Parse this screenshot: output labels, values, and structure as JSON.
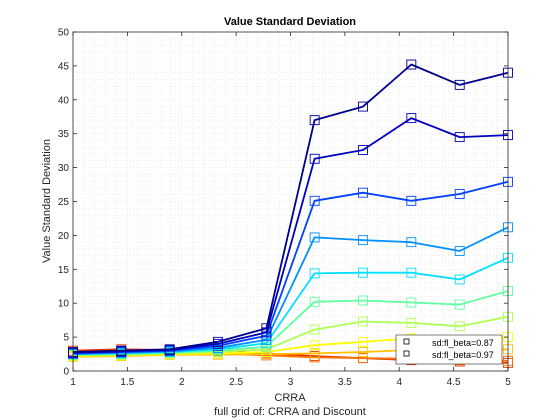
{
  "chart_data": {
    "type": "line",
    "title": "Value Standard Deviation",
    "xlabel": "CRRA",
    "ylabel": "Value Standard Deviation",
    "caption": "full grid of: CRRA and Discount",
    "xlim": [
      1,
      5
    ],
    "ylim": [
      0,
      50
    ],
    "xticks": [
      "1",
      "1.5",
      "2",
      "2.5",
      "3",
      "3.5",
      "4",
      "4.5",
      "5"
    ],
    "yticks": [
      "0",
      "5",
      "10",
      "15",
      "20",
      "25",
      "30",
      "35",
      "40",
      "45",
      "50"
    ],
    "grid": "minor-dotted",
    "legend_placement": "bottom-right",
    "x": [
      1.0,
      1.444,
      1.889,
      2.333,
      2.778,
      3.222,
      3.667,
      4.111,
      4.556,
      5.0
    ],
    "legend": [
      {
        "label": "sd:fl_beta=0.87",
        "color": "#000000"
      },
      {
        "label": "sd:fl_beta=0.97",
        "color": "#000000"
      }
    ],
    "series": [
      {
        "color": "#00008f",
        "values": [
          2.8,
          3.0,
          3.2,
          4.3,
          6.3,
          37.0,
          39.0,
          45.2,
          42.2,
          44.0
        ]
      },
      {
        "color": "#0000bf",
        "values": [
          2.7,
          2.9,
          3.1,
          4.0,
          5.7,
          31.3,
          32.6,
          37.3,
          34.5,
          34.8
        ]
      },
      {
        "color": "#0040ff",
        "values": [
          2.6,
          2.8,
          3.0,
          3.7,
          5.2,
          25.1,
          26.3,
          25.1,
          26.1,
          27.9
        ]
      },
      {
        "color": "#0090ff",
        "values": [
          2.5,
          2.7,
          2.9,
          3.4,
          4.6,
          19.7,
          19.3,
          19.0,
          17.7,
          21.2
        ]
      },
      {
        "color": "#00e0ff",
        "values": [
          2.5,
          2.6,
          2.8,
          3.2,
          4.1,
          14.4,
          14.5,
          14.5,
          13.5,
          16.7
        ]
      },
      {
        "color": "#60ffa0",
        "values": [
          2.4,
          2.5,
          2.7,
          3.0,
          3.6,
          10.2,
          10.4,
          10.1,
          9.8,
          11.8
        ]
      },
      {
        "color": "#b0ff50",
        "values": [
          2.3,
          2.4,
          2.6,
          2.8,
          3.2,
          6.1,
          7.3,
          7.1,
          6.6,
          8.0
        ]
      },
      {
        "color": "#ffff00",
        "values": [
          2.2,
          2.3,
          2.5,
          2.6,
          2.8,
          3.8,
          4.3,
          4.8,
          4.1,
          5.0
        ]
      },
      {
        "color": "#ffc000",
        "values": [
          2.1,
          2.2,
          2.4,
          2.4,
          2.5,
          2.6,
          2.8,
          3.1,
          2.9,
          3.2
        ]
      },
      {
        "color": "#ff7000",
        "values": [
          2.2,
          2.6,
          2.7,
          2.6,
          2.3,
          2.0,
          1.9,
          1.8,
          1.6,
          1.5
        ]
      },
      {
        "color": "#e03000",
        "values": [
          3.0,
          3.2,
          3.1,
          2.9,
          2.6,
          2.2,
          1.9,
          1.6,
          1.4,
          1.2
        ]
      }
    ]
  }
}
